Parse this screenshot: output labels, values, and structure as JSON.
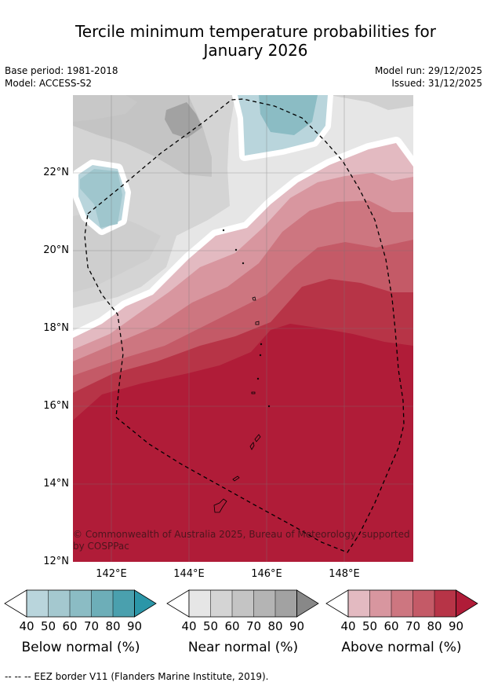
{
  "title_line1": "Tercile minimum temperature probabilities for",
  "title_line2": "January 2026",
  "base_period": "Base period: 1981-2018",
  "model": "Model: ACCESS-S2",
  "model_run": "Model run: 29/12/2025",
  "issued": "Issued: 31/12/2025",
  "map": {
    "lat_labels": [
      "22°N",
      "20°N",
      "18°N",
      "16°N",
      "14°N",
      "12°N"
    ],
    "lon_labels": [
      "142°E",
      "144°E",
      "146°E",
      "148°E"
    ],
    "copyright": "© Commonwealth of Australia 2025, Bureau of Meteorology, supported by COSPPac"
  },
  "legend": {
    "ticks": [
      "40",
      "50",
      "60",
      "70",
      "80",
      "90"
    ],
    "below": {
      "title": "Below normal (%)",
      "colors": [
        "#b9d5dc",
        "#a4c8cf",
        "#8bbcc4",
        "#6daeb8",
        "#4aa0ae",
        "#2b96a8"
      ]
    },
    "near": {
      "title": "Near normal (%)",
      "colors": [
        "#e6e6e6",
        "#d4d4d4",
        "#c4c4c4",
        "#b4b4b4",
        "#a2a2a2",
        "#888888"
      ]
    },
    "above": {
      "title": "Above normal (%)",
      "colors": [
        "#e3bac1",
        "#d8969f",
        "#cd7680",
        "#c45a67",
        "#b73447",
        "#b01c38"
      ]
    }
  },
  "footnote": "--  --  -- EEZ border V11 (Flanders Marine Institute, 2019)."
}
